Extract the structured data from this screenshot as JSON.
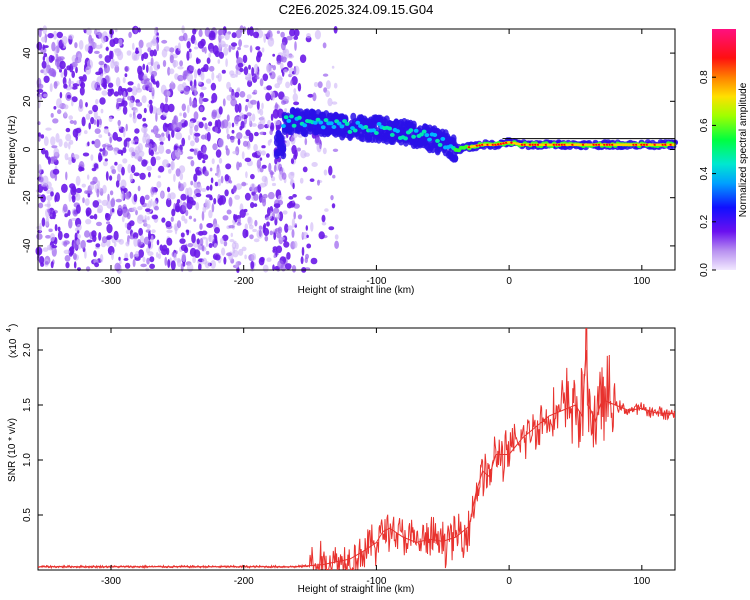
{
  "title": "C2E6.2025.324.09.15.G04",
  "colors": {
    "snr_line": "#e8322e",
    "ridge_core": "#ff0000",
    "axis": "#000000",
    "noise": "#7a2be0"
  },
  "chart_data": [
    {
      "type": "heatmap",
      "xlabel": "Height of straight line (km)",
      "ylabel": "Frequency (Hz)",
      "xlim": [
        -355,
        125
      ],
      "ylim": [
        -50,
        50
      ],
      "xticks": [
        -300,
        -200,
        -100,
        0,
        100
      ],
      "yticks": [
        -40,
        -20,
        0,
        20,
        40
      ],
      "colorbar": {
        "label": "Normalized spectral amplitude",
        "range": [
          0,
          1
        ],
        "ticks": [
          0.0,
          0.2,
          0.4,
          0.6,
          0.8
        ]
      },
      "noise_region_x": [
        -355,
        -160
      ],
      "ridge": {
        "description_points_x": [
          -170,
          -150,
          -130,
          -110,
          -90,
          -70,
          -50,
          -40,
          -30,
          -20,
          -10,
          0,
          10,
          30,
          50,
          70,
          100,
          125
        ],
        "center_freq": [
          12,
          11,
          10,
          9,
          8,
          6,
          3,
          0,
          1,
          2,
          2,
          3,
          2,
          2,
          2,
          2,
          2,
          2
        ]
      }
    },
    {
      "type": "line",
      "xlabel": "Height of straight line (km)",
      "ylabel": "SNR (10 * v/v)",
      "y_scale_label": "(x10",
      "y_scale_exponent": "4",
      "xlim": [
        -355,
        125
      ],
      "ylim": [
        0,
        2.2
      ],
      "xticks": [
        -300,
        -200,
        -100,
        0,
        100
      ],
      "yticks": [
        0.5,
        1.0,
        1.5,
        2.0
      ],
      "yticklabels": [
        "0.5",
        "1.0",
        "1.5",
        "2.0"
      ],
      "series": [
        {
          "name": "SNR",
          "x": [
            -355,
            -300,
            -250,
            -200,
            -160,
            -140,
            -120,
            -110,
            -100,
            -95,
            -90,
            -80,
            -70,
            -60,
            -50,
            -40,
            -35,
            -30,
            -25,
            -20,
            -15,
            -10,
            0,
            10,
            20,
            30,
            40,
            50,
            55,
            58,
            60,
            65,
            70,
            80,
            90,
            100,
            110,
            125
          ],
          "y": [
            0.03,
            0.03,
            0.03,
            0.03,
            0.03,
            0.05,
            0.1,
            0.17,
            0.25,
            0.35,
            0.38,
            0.3,
            0.25,
            0.28,
            0.26,
            0.3,
            0.35,
            0.4,
            0.7,
            0.9,
            0.85,
            1.05,
            1.05,
            1.2,
            1.3,
            1.4,
            1.45,
            1.5,
            1.4,
            2.0,
            1.5,
            1.35,
            1.55,
            1.5,
            1.45,
            1.47,
            1.43,
            1.42
          ]
        }
      ]
    }
  ]
}
